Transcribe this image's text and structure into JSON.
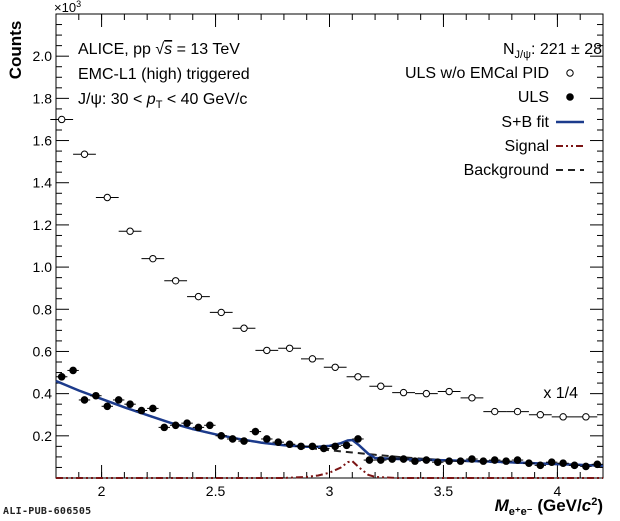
{
  "pub_id": "ALI-PUB-606505",
  "text": {
    "line1_prefix": "ALICE, pp ",
    "line1_sqrt": "√",
    "line1_s": "s",
    "line1_suffix": " = 13 TeV",
    "line2": "EMC-L1 (high) triggered",
    "line3_prefix": "J/ψ: 30 < ",
    "line3_p": "p",
    "line3_sub": "T",
    "line3_suffix": " < 40 GeV/c",
    "njpsi_N": "N",
    "njpsi_sub": "J/ψ",
    "njpsi_val": ": 221 ± 28",
    "scale_note": "x 1/4",
    "y_multiplier": "×10",
    "y_multiplier_exp": "3"
  },
  "chart_data": {
    "type": "scatter",
    "xlabel": "M",
    "xlabel_sub": "e⁺e⁻",
    "xlabel_unit_prefix": " (GeV/",
    "xlabel_unit_c": "c",
    "xlabel_unit_exp": "2",
    "xlabel_unit_suffix": ")",
    "ylabel": "Counts",
    "xlim": [
      1.8,
      4.2
    ],
    "ylim": [
      0,
      2.2
    ],
    "x_ticks": [
      2,
      2.5,
      3,
      3.5,
      4
    ],
    "x_tick_labels": [
      "2",
      "2.5",
      "3",
      "3.5",
      "4"
    ],
    "y_ticks": [
      0.2,
      0.4,
      0.6,
      0.8,
      1.0,
      1.2,
      1.4,
      1.6,
      1.8,
      2.0
    ],
    "y_tick_labels": [
      "0.2",
      "0.4",
      "0.6",
      "0.8",
      "1.0",
      "1.2",
      "1.4",
      "1.6",
      "1.8",
      "2.0"
    ],
    "bin_width": 0.05,
    "legend_position": "top-right",
    "legend": [
      {
        "label": "ULS w/o EMCal PID",
        "style": "open-circle"
      },
      {
        "label": "ULS",
        "style": "filled-circle"
      },
      {
        "label": "S+B fit",
        "style": "solid-line",
        "color": "#1c3b8c"
      },
      {
        "label": "Signal",
        "style": "dash-dot-line",
        "color": "#7b1414"
      },
      {
        "label": "Background",
        "style": "dashed-line",
        "color": "#222222"
      }
    ],
    "series": [
      {
        "name": "ULS w/o EMCal PID",
        "marker": "open-circle",
        "x": [
          1.825,
          1.925,
          2.025,
          2.125,
          2.225,
          2.325,
          2.425,
          2.525,
          2.625,
          2.725,
          2.825,
          2.925,
          3.025,
          3.125,
          3.225,
          3.325,
          3.425,
          3.525,
          3.625,
          3.725,
          3.825,
          3.925,
          4.025,
          4.125
        ],
        "y": [
          1.7,
          1.535,
          1.33,
          1.17,
          1.04,
          0.935,
          0.86,
          0.785,
          0.71,
          0.605,
          0.615,
          0.565,
          0.525,
          0.48,
          0.435,
          0.405,
          0.4,
          0.41,
          0.38,
          0.315,
          0.315,
          0.3,
          0.29,
          0.29
        ]
      },
      {
        "name": "ULS",
        "marker": "filled-circle",
        "x": [
          1.825,
          1.875,
          1.925,
          1.975,
          2.025,
          2.075,
          2.125,
          2.175,
          2.225,
          2.275,
          2.325,
          2.375,
          2.425,
          2.475,
          2.525,
          2.575,
          2.625,
          2.675,
          2.725,
          2.775,
          2.825,
          2.875,
          2.925,
          2.975,
          3.025,
          3.075,
          3.125,
          3.175,
          3.225,
          3.275,
          3.325,
          3.375,
          3.425,
          3.475,
          3.525,
          3.575,
          3.625,
          3.675,
          3.725,
          3.775,
          3.825,
          3.875,
          3.925,
          3.975,
          4.025,
          4.075,
          4.125,
          4.175
        ],
        "y": [
          0.48,
          0.51,
          0.37,
          0.39,
          0.34,
          0.37,
          0.35,
          0.32,
          0.33,
          0.24,
          0.25,
          0.26,
          0.24,
          0.25,
          0.2,
          0.185,
          0.175,
          0.22,
          0.185,
          0.17,
          0.16,
          0.15,
          0.15,
          0.14,
          0.15,
          0.155,
          0.185,
          0.085,
          0.085,
          0.09,
          0.09,
          0.08,
          0.085,
          0.075,
          0.08,
          0.08,
          0.09,
          0.08,
          0.085,
          0.08,
          0.085,
          0.07,
          0.06,
          0.075,
          0.07,
          0.06,
          0.055,
          0.065
        ]
      },
      {
        "name": "S+B fit",
        "line": "solid",
        "x": [
          1.8,
          1.9,
          2.0,
          2.1,
          2.2,
          2.3,
          2.4,
          2.5,
          2.6,
          2.7,
          2.8,
          2.9,
          2.95,
          3.0,
          3.05,
          3.08,
          3.1,
          3.13,
          3.17,
          3.2,
          3.3,
          3.4,
          3.5,
          3.6,
          3.7,
          3.8,
          3.9,
          4.0,
          4.1,
          4.2
        ],
        "y": [
          0.46,
          0.415,
          0.375,
          0.335,
          0.298,
          0.262,
          0.232,
          0.207,
          0.186,
          0.168,
          0.155,
          0.148,
          0.148,
          0.152,
          0.165,
          0.178,
          0.18,
          0.155,
          0.115,
          0.095,
          0.09,
          0.087,
          0.084,
          0.081,
          0.078,
          0.074,
          0.07,
          0.066,
          0.062,
          0.058
        ]
      },
      {
        "name": "Signal",
        "line": "dash-dot",
        "x": [
          1.8,
          2.8,
          2.9,
          2.95,
          3.0,
          3.05,
          3.08,
          3.1,
          3.13,
          3.17,
          3.2,
          3.3,
          4.2
        ],
        "y": [
          0.0,
          0.0,
          0.005,
          0.012,
          0.025,
          0.05,
          0.075,
          0.08,
          0.05,
          0.015,
          0.005,
          0.0,
          0.0
        ]
      },
      {
        "name": "Background",
        "line": "dashed",
        "x": [
          1.8,
          1.9,
          2.0,
          2.1,
          2.2,
          2.3,
          2.4,
          2.5,
          2.6,
          2.7,
          2.8,
          2.9,
          3.0,
          3.1,
          3.2,
          3.3,
          3.4,
          3.5,
          3.6,
          3.7,
          3.8,
          3.9,
          4.0,
          4.1,
          4.2
        ],
        "y": [
          0.46,
          0.415,
          0.375,
          0.335,
          0.298,
          0.262,
          0.232,
          0.207,
          0.186,
          0.168,
          0.155,
          0.143,
          0.132,
          0.121,
          0.11,
          0.1,
          0.092,
          0.085,
          0.08,
          0.076,
          0.073,
          0.069,
          0.066,
          0.062,
          0.058
        ]
      }
    ]
  }
}
